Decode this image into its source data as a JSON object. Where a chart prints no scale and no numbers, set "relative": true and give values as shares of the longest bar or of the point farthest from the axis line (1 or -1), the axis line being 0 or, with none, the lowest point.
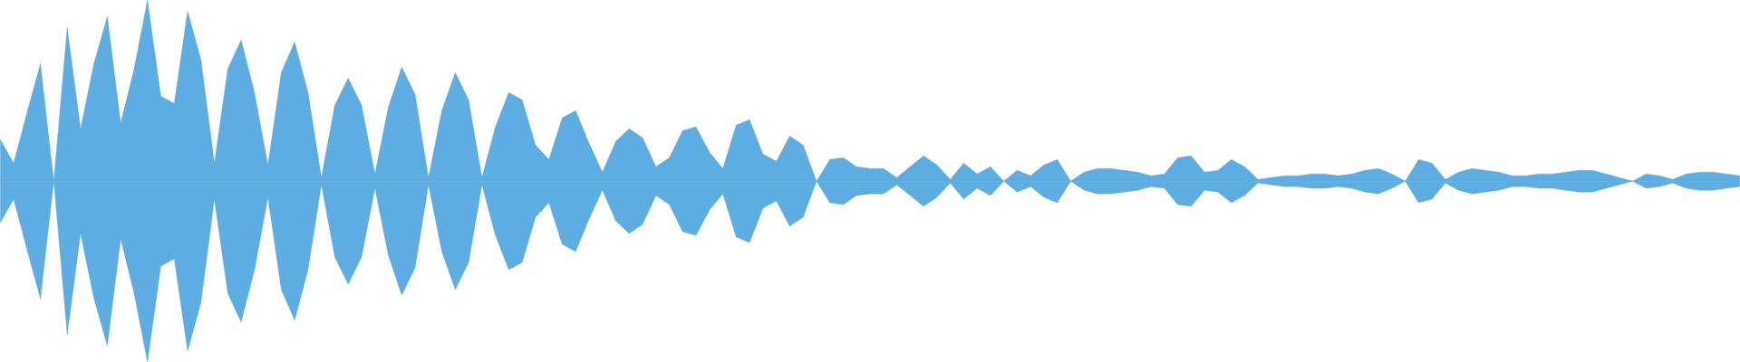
{
  "chart_data": {
    "type": "area",
    "relative": true,
    "categories": [
      null,
      null,
      null,
      null,
      null,
      null,
      null,
      null,
      null,
      null,
      null,
      null,
      null,
      null,
      null,
      null,
      null,
      null,
      null,
      null,
      null,
      null,
      null,
      null,
      null,
      null,
      null,
      null,
      null,
      null,
      null,
      null,
      null,
      null,
      null,
      null,
      null,
      null,
      null,
      null,
      null,
      null,
      null,
      null,
      null,
      null,
      null,
      null,
      null,
      null,
      null,
      null,
      null,
      null,
      null,
      null,
      null,
      null,
      null,
      null,
      null,
      null,
      null,
      null,
      null,
      null,
      null,
      null,
      null,
      null,
      null,
      null,
      null,
      null,
      null,
      null,
      null,
      null,
      null,
      null,
      null,
      null,
      null,
      null,
      null,
      null,
      null,
      null,
      null,
      null,
      null,
      null,
      null,
      null,
      null,
      null,
      null,
      null,
      null,
      null,
      null,
      null,
      null,
      null,
      null,
      null,
      null,
      null,
      null,
      null,
      null,
      null,
      null,
      null,
      null,
      null,
      null,
      null,
      null,
      null,
      null,
      null,
      null,
      null,
      null,
      null,
      null,
      null,
      null,
      null,
      null
    ],
    "ref_lines": [
      {
        "axis": "y",
        "value": 0,
        "color": "#5dade2"
      }
    ],
    "series": [
      {
        "color": "#5dade2",
        "values": [
          0.23,
          0.1,
          0.38,
          0.65,
          0,
          0.85,
          0.29,
          0.65,
          0.91,
          0.32,
          0.62,
          1.0,
          0.47,
          0.43,
          0.94,
          0.67,
          0.1,
          0.62,
          0.78,
          0.49,
          0.09,
          0.6,
          0.77,
          0.49,
          0.02,
          0.42,
          0.57,
          0.42,
          0.04,
          0.41,
          0.63,
          0.48,
          0.02,
          0.39,
          0.6,
          0.45,
          0.02,
          0.3,
          0.49,
          0.45,
          0.2,
          0.12,
          0.35,
          0.39,
          0.21,
          0.05,
          0.22,
          0.29,
          0.24,
          0.08,
          0.13,
          0.28,
          0.3,
          0.16,
          0.07,
          0.31,
          0.34,
          0.15,
          0.11,
          0.25,
          0.2,
          0,
          0.12,
          0.13,
          0.08,
          0.07,
          0.07,
          0.02,
          0.08,
          0.14,
          0.09,
          0.01,
          0.1,
          0.04,
          0.08,
          0,
          0.06,
          0.03,
          0.09,
          0.12,
          0,
          0.05,
          0.07,
          0.07,
          0.06,
          0.05,
          0.03,
          0.04,
          0.13,
          0.14,
          0.05,
          0.06,
          0.12,
          0.08,
          0.01,
          0.02,
          0.03,
          0.03,
          0.04,
          0.04,
          0.03,
          0.04,
          0.06,
          0.07,
          0.04,
          0,
          0.12,
          0.1,
          0.01,
          0.05,
          0.07,
          0.06,
          0.05,
          0.03,
          0.03,
          0.04,
          0.04,
          0.05,
          0.06,
          0.06,
          0.04,
          0.02,
          0,
          0.04,
          0.03,
          0.01,
          0.04,
          0.05,
          0.05,
          0.04,
          0.03
        ]
      },
      {
        "color": "#5dade2",
        "values": [
          -0.23,
          -0.1,
          -0.38,
          -0.65,
          0,
          -0.85,
          -0.29,
          -0.65,
          -0.91,
          -0.32,
          -0.62,
          -1.0,
          -0.47,
          -0.43,
          -0.94,
          -0.67,
          -0.1,
          -0.62,
          -0.78,
          -0.49,
          -0.09,
          -0.6,
          -0.77,
          -0.49,
          -0.02,
          -0.42,
          -0.57,
          -0.42,
          -0.04,
          -0.41,
          -0.63,
          -0.48,
          -0.02,
          -0.39,
          -0.6,
          -0.45,
          -0.02,
          -0.3,
          -0.49,
          -0.45,
          -0.2,
          -0.12,
          -0.35,
          -0.39,
          -0.21,
          -0.05,
          -0.22,
          -0.29,
          -0.24,
          -0.08,
          -0.13,
          -0.28,
          -0.3,
          -0.16,
          -0.07,
          -0.31,
          -0.34,
          -0.15,
          -0.11,
          -0.25,
          -0.2,
          0,
          -0.12,
          -0.13,
          -0.08,
          -0.07,
          -0.07,
          -0.02,
          -0.08,
          -0.14,
          -0.09,
          -0.01,
          -0.1,
          -0.04,
          -0.08,
          0,
          -0.06,
          -0.03,
          -0.09,
          -0.12,
          0,
          -0.05,
          -0.07,
          -0.07,
          -0.06,
          -0.05,
          -0.03,
          -0.04,
          -0.13,
          -0.14,
          -0.05,
          -0.06,
          -0.12,
          -0.08,
          -0.01,
          -0.02,
          -0.03,
          -0.03,
          -0.04,
          -0.04,
          -0.03,
          -0.04,
          -0.06,
          -0.07,
          -0.04,
          0,
          -0.12,
          -0.1,
          -0.01,
          -0.05,
          -0.07,
          -0.06,
          -0.05,
          -0.03,
          -0.03,
          -0.04,
          -0.04,
          -0.05,
          -0.06,
          -0.06,
          -0.04,
          -0.02,
          0,
          -0.04,
          -0.03,
          -0.01,
          -0.04,
          -0.05,
          -0.05,
          -0.04,
          -0.03
        ]
      }
    ]
  }
}
